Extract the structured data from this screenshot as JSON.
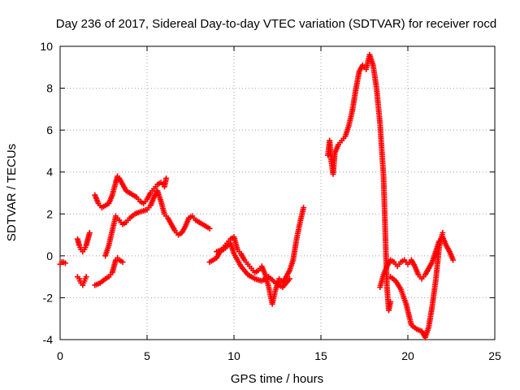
{
  "chart_data": {
    "type": "scatter",
    "title": "Day 236 of 2017, Sidereal Day-to-day VTEC variation (SDTVAR) for receiver rocd",
    "xlabel": "GPS time / hours",
    "ylabel": "SDTVAR / TECUs",
    "xlim": [
      0,
      25
    ],
    "ylim": [
      -4,
      10
    ],
    "xticks": [
      0,
      5,
      10,
      15,
      20,
      25
    ],
    "yticks": [
      -4,
      -2,
      0,
      2,
      4,
      6,
      8,
      10
    ],
    "grid": true,
    "marker": "+",
    "color": "#ff0000",
    "series": [
      {
        "name": "s1",
        "x": [
          0.0,
          0.1,
          0.2,
          0.3
        ],
        "y": [
          -0.4,
          -0.3,
          -0.3,
          -0.35
        ]
      },
      {
        "name": "s2",
        "x": [
          1.0,
          1.1,
          1.2,
          1.3,
          1.4,
          1.5
        ],
        "y": [
          -1.0,
          -1.1,
          -1.3,
          -1.4,
          -1.2,
          -1.0
        ]
      },
      {
        "name": "s3",
        "x": [
          1.0,
          1.1,
          1.2,
          1.3,
          1.4,
          1.5,
          1.6,
          1.7
        ],
        "y": [
          0.8,
          0.5,
          0.3,
          0.2,
          0.3,
          0.5,
          0.8,
          1.1
        ]
      },
      {
        "name": "s4",
        "x": [
          2.0,
          2.3,
          2.6,
          2.8,
          3.0,
          3.1,
          3.2,
          3.3,
          3.4,
          3.6
        ],
        "y": [
          -1.4,
          -1.3,
          -1.1,
          -1.0,
          -0.8,
          -0.5,
          -0.2,
          -0.1,
          -0.2,
          -0.3
        ]
      },
      {
        "name": "s5",
        "x": [
          2.0,
          2.2,
          2.4,
          2.6,
          2.8,
          3.0,
          3.2,
          3.3,
          3.4,
          3.6,
          3.8,
          4.0,
          4.2,
          4.4,
          4.6,
          4.8,
          5.0,
          5.2,
          5.4,
          5.6,
          5.8,
          6.0,
          6.1
        ],
        "y": [
          2.9,
          2.5,
          2.3,
          2.4,
          2.5,
          2.9,
          3.5,
          3.8,
          3.7,
          3.4,
          3.1,
          3.0,
          2.9,
          2.8,
          2.6,
          2.5,
          2.7,
          3.0,
          3.2,
          3.4,
          3.5,
          3.3,
          3.7
        ]
      },
      {
        "name": "s6",
        "x": [
          2.6,
          2.8,
          3.0,
          3.2,
          3.4,
          3.6,
          3.8,
          4.0,
          4.3,
          4.6,
          5.0,
          5.2,
          5.4,
          5.6,
          5.8,
          6.0,
          6.2,
          6.4,
          6.6,
          6.8,
          7.0,
          7.2,
          7.4,
          7.6,
          7.8,
          8.0,
          8.2,
          8.4,
          8.6
        ],
        "y": [
          0.0,
          0.5,
          1.2,
          1.9,
          1.7,
          1.5,
          1.6,
          1.8,
          2.0,
          2.1,
          2.2,
          2.4,
          2.8,
          3.1,
          2.6,
          2.0,
          1.8,
          1.5,
          1.2,
          1.0,
          1.1,
          1.4,
          1.8,
          1.9,
          1.7,
          1.6,
          1.5,
          1.4,
          1.3
        ]
      },
      {
        "name": "s7",
        "x": [
          8.6,
          8.8,
          9.0,
          9.2,
          9.4,
          9.6,
          9.8,
          10.0,
          10.2,
          10.4,
          10.6,
          10.8,
          11.0,
          11.2,
          11.4,
          11.6,
          11.8,
          12.0,
          12.2,
          12.4,
          12.6,
          12.8,
          13.0,
          13.2,
          13.4,
          13.6,
          13.8,
          14.0
        ],
        "y": [
          -0.3,
          -0.2,
          -0.1,
          0.2,
          0.4,
          0.6,
          0.8,
          0.9,
          0.3,
          0.1,
          -0.2,
          -0.4,
          -0.6,
          -0.8,
          -0.7,
          -0.5,
          -0.9,
          -1.5,
          -2.3,
          -1.6,
          -1.1,
          -1.3,
          -1.0,
          -0.7,
          -0.2,
          0.8,
          1.6,
          2.3
        ]
      },
      {
        "name": "s8",
        "x": [
          9.0,
          9.4,
          9.8,
          10.0,
          10.4,
          10.8,
          11.2,
          11.6,
          12.0,
          12.4,
          12.8,
          13.2
        ],
        "y": [
          0.2,
          0.3,
          0.6,
          0.1,
          -0.5,
          -0.9,
          -1.1,
          -1.2,
          -1.0,
          -1.3,
          -1.5,
          -1.1
        ]
      },
      {
        "name": "s9",
        "x": [
          15.4,
          15.5,
          15.6,
          15.7,
          15.8,
          16.0,
          16.2,
          16.4,
          16.6,
          16.8,
          17.0,
          17.2,
          17.4,
          17.6,
          17.8,
          18.0,
          18.2,
          18.4,
          18.6,
          18.8,
          18.9,
          19.0
        ],
        "y": [
          4.8,
          5.5,
          4.5,
          3.9,
          4.9,
          5.3,
          5.5,
          5.7,
          6.2,
          6.9,
          7.9,
          8.8,
          9.1,
          8.9,
          9.6,
          9.1,
          8.0,
          6.3,
          3.8,
          -1.5,
          -2.6,
          -2.2
        ]
      },
      {
        "name": "s10",
        "x": [
          18.4,
          18.6,
          18.8,
          19.0,
          19.2,
          19.4,
          19.6,
          19.8,
          20.0,
          20.2,
          20.4,
          20.6,
          20.8,
          21.0,
          21.2,
          21.4,
          21.6,
          21.8,
          22.0,
          22.2,
          22.4,
          22.6
        ],
        "y": [
          -1.5,
          -0.9,
          -0.5,
          -0.2,
          -0.3,
          -0.5,
          -0.3,
          -0.2,
          -0.4,
          -0.2,
          -0.5,
          -0.9,
          -1.1,
          -0.9,
          -0.6,
          -0.3,
          0.2,
          0.7,
          0.9,
          0.5,
          0.2,
          -0.2
        ]
      },
      {
        "name": "s11",
        "x": [
          19.0,
          19.3,
          19.6,
          19.9,
          20.2,
          20.5,
          20.8,
          21.0,
          21.2,
          21.4,
          21.6,
          21.8,
          22.0
        ],
        "y": [
          -1.0,
          -1.2,
          -1.6,
          -2.3,
          -3.3,
          -3.5,
          -3.6,
          -3.9,
          -3.4,
          -2.4,
          -1.2,
          0.4,
          1.1
        ]
      }
    ]
  }
}
